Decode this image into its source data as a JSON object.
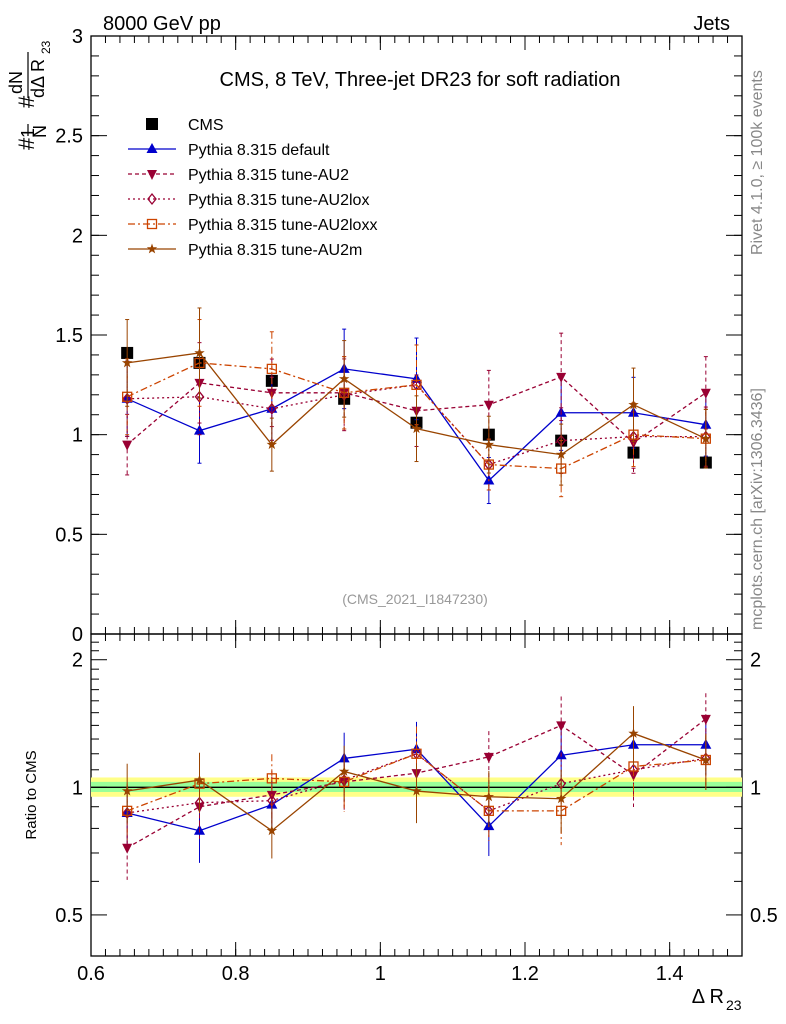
{
  "header": {
    "left": "8000 GeV pp",
    "right": "Jets"
  },
  "side_labels": {
    "rivet": "Rivet 4.1.0, ≥ 100k events",
    "mcplots": "mcplots.cern.ch [arXiv:1306.3436]"
  },
  "watermark": "(CMS_2021_I1847230)",
  "colors": {
    "cms": "#000000",
    "default": "#0000cc",
    "au2": "#990033",
    "au2lox": "#990033",
    "au2loxx": "#cc4400",
    "au2m": "#994400",
    "band_green": "#99ff99",
    "band_yellow": "#ffff88"
  },
  "chart_data": {
    "type": "scatter",
    "title": "CMS, 8 TeV, Three-jet DR23 for soft radiation",
    "ylabel_main": "#1/N #dN/dΔ R23",
    "ylabel_ratio": "Ratio to CMS",
    "xlabel": "Δ R23",
    "xlim": [
      0.6,
      1.5
    ],
    "ylim_main": [
      0,
      3
    ],
    "ylim_ratio": [
      0.4,
      2.3
    ],
    "x_ticks": [
      "0.6",
      "0.8",
      "1",
      "1.2",
      "1.4"
    ],
    "y_ticks_main": [
      "0",
      "0.5",
      "1",
      "1.5",
      "2",
      "2.5",
      "3"
    ],
    "y_ticks_ratio": [
      "0.5",
      "1",
      "2"
    ],
    "x": [
      0.65,
      0.75,
      0.85,
      0.95,
      1.05,
      1.15,
      1.25,
      1.35,
      1.45
    ],
    "series": [
      {
        "name": "CMS",
        "key": "cms",
        "values": [
          1.41,
          1.36,
          1.27,
          1.18,
          1.06,
          1.0,
          0.97,
          0.91,
          0.86
        ],
        "ratio": [
          1,
          1,
          1,
          1,
          1,
          1,
          1,
          1,
          1
        ]
      },
      {
        "name": "Pythia 8.315 default",
        "key": "default",
        "values": [
          1.18,
          1.02,
          1.13,
          1.33,
          1.28,
          0.77,
          1.11,
          1.11,
          1.05
        ],
        "ratio": [
          0.87,
          0.79,
          0.91,
          1.17,
          1.23,
          0.81,
          1.19,
          1.26,
          1.26
        ]
      },
      {
        "name": "Pythia 8.315 tune-AU2",
        "key": "au2",
        "values": [
          0.95,
          1.26,
          1.21,
          1.21,
          1.12,
          1.15,
          1.29,
          0.96,
          1.21
        ],
        "ratio": [
          0.72,
          0.9,
          0.96,
          1.03,
          1.08,
          1.18,
          1.4,
          1.07,
          1.45
        ]
      },
      {
        "name": "Pythia 8.315 tune-AU2lox",
        "key": "au2lox",
        "values": [
          1.18,
          1.19,
          1.13,
          1.2,
          1.25,
          0.85,
          0.97,
          0.99,
          0.99
        ],
        "ratio": [
          0.87,
          0.92,
          0.93,
          1.04,
          1.2,
          0.88,
          1.02,
          1.1,
          1.17
        ]
      },
      {
        "name": "Pythia 8.315 tune-AU2loxx",
        "key": "au2loxx",
        "values": [
          1.19,
          1.36,
          1.33,
          1.21,
          1.25,
          0.85,
          0.83,
          1.0,
          0.98
        ],
        "ratio": [
          0.88,
          1.02,
          1.05,
          1.03,
          1.2,
          0.88,
          0.88,
          1.12,
          1.16
        ]
      },
      {
        "name": "Pythia 8.315 tune-AU2m",
        "key": "au2m",
        "values": [
          1.36,
          1.41,
          0.95,
          1.28,
          1.03,
          0.95,
          0.9,
          1.15,
          0.98
        ],
        "ratio": [
          0.98,
          1.04,
          0.79,
          1.09,
          0.98,
          0.95,
          0.94,
          1.34,
          1.16
        ]
      }
    ]
  }
}
